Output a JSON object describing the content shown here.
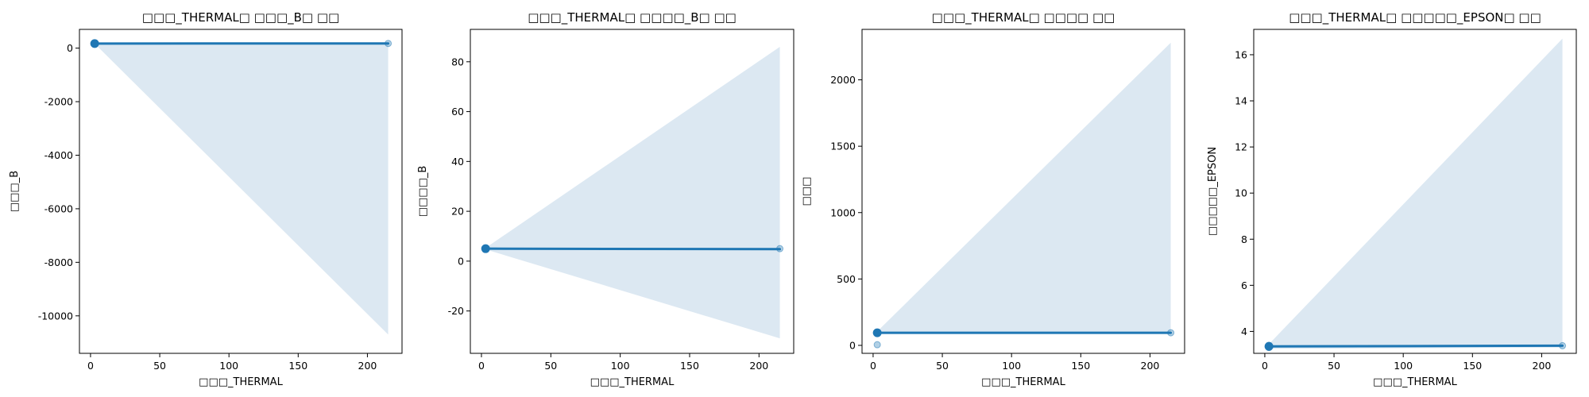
{
  "colors": {
    "line": "#1f77b4",
    "band": "#dce8f2",
    "frame": "#000000"
  },
  "chart_data": [
    {
      "type": "scatter",
      "title": "□□□_THERMAL□ □□□_B□ □□",
      "xlabel": "□□□_THERMAL",
      "ylabel": "□□□_B",
      "xlim": [
        -8,
        225
      ],
      "ylim": [
        -11400,
        700
      ],
      "xticks": [
        0,
        50,
        100,
        150,
        200
      ],
      "xtick_labels": [
        "0",
        "50",
        "100",
        "150",
        "200"
      ],
      "yticks": [
        0,
        -2000,
        -4000,
        -6000,
        -8000,
        -10000
      ],
      "ytick_labels": [
        "0",
        "-2000",
        "-4000",
        "-6000",
        "-8000",
        "-10000"
      ],
      "points": [
        {
          "x": 3,
          "y": 170
        },
        {
          "x": 3,
          "y": 160
        },
        {
          "x": 215,
          "y": 175
        }
      ],
      "fit": {
        "x": [
          3,
          215
        ],
        "y": [
          170,
          175
        ]
      },
      "band": {
        "upper": [
          [
            3,
            175
          ],
          [
            215,
            200
          ]
        ],
        "lower": [
          [
            3,
            165
          ],
          [
            215,
            -10700
          ]
        ]
      }
    },
    {
      "type": "scatter",
      "title": "□□□_THERMAL□ □□□□_B□ □□",
      "xlabel": "□□□_THERMAL",
      "ylabel": "□□□□_B",
      "xlim": [
        -8,
        225
      ],
      "ylim": [
        -37,
        93
      ],
      "xticks": [
        0,
        50,
        100,
        150,
        200
      ],
      "xtick_labels": [
        "0",
        "50",
        "100",
        "150",
        "200"
      ],
      "yticks": [
        80,
        60,
        40,
        20,
        0,
        -20
      ],
      "ytick_labels": [
        "80",
        "60",
        "40",
        "20",
        "0",
        "-20"
      ],
      "points": [
        {
          "x": 3,
          "y": 5
        },
        {
          "x": 3,
          "y": 5.2
        },
        {
          "x": 215,
          "y": 5
        }
      ],
      "fit": {
        "x": [
          3,
          215
        ],
        "y": [
          5,
          4.8
        ]
      },
      "band": {
        "upper": [
          [
            3,
            5.3
          ],
          [
            215,
            86
          ]
        ],
        "lower": [
          [
            3,
            4.7
          ],
          [
            215,
            -31
          ]
        ]
      }
    },
    {
      "type": "scatter",
      "title": "□□□_THERMAL□ □□□□ □□",
      "xlabel": "□□□_THERMAL",
      "ylabel": "□□□",
      "xlim": [
        -8,
        225
      ],
      "ylim": [
        -60,
        2380
      ],
      "xticks": [
        0,
        50,
        100,
        150,
        200
      ],
      "xtick_labels": [
        "0",
        "50",
        "100",
        "150",
        "200"
      ],
      "yticks": [
        2000,
        1500,
        1000,
        500,
        0
      ],
      "ytick_labels": [
        "2000",
        "1500",
        "1000",
        "500",
        "0"
      ],
      "points": [
        {
          "x": 3,
          "y": 95
        },
        {
          "x": 3,
          "y": 5
        },
        {
          "x": 215,
          "y": 95
        }
      ],
      "fit": {
        "x": [
          3,
          215
        ],
        "y": [
          95,
          95
        ]
      },
      "band": {
        "upper": [
          [
            3,
            105
          ],
          [
            215,
            2280
          ]
        ],
        "lower": [
          [
            3,
            85
          ],
          [
            215,
            85
          ]
        ]
      }
    },
    {
      "type": "scatter",
      "title": "□□□_THERMAL□ □□□□□_EPSON□ □□",
      "xlabel": "□□□_THERMAL",
      "ylabel": "□□□□□_EPSON",
      "xlim": [
        -8,
        225
      ],
      "ylim": [
        3.05,
        17.1
      ],
      "xticks": [
        0,
        50,
        100,
        150,
        200
      ],
      "xtick_labels": [
        "0",
        "50",
        "100",
        "150",
        "200"
      ],
      "yticks": [
        16,
        14,
        12,
        10,
        8,
        6,
        4
      ],
      "ytick_labels": [
        "16",
        "14",
        "12",
        "10",
        "8",
        "6",
        "4"
      ],
      "points": [
        {
          "x": 3,
          "y": 3.4
        },
        {
          "x": 3,
          "y": 3.3
        },
        {
          "x": 215,
          "y": 3.38
        }
      ],
      "fit": {
        "x": [
          3,
          215
        ],
        "y": [
          3.35,
          3.38
        ]
      },
      "band": {
        "upper": [
          [
            3,
            3.45
          ],
          [
            215,
            16.7
          ]
        ],
        "lower": [
          [
            3,
            3.25
          ],
          [
            215,
            3.3
          ]
        ]
      }
    }
  ]
}
